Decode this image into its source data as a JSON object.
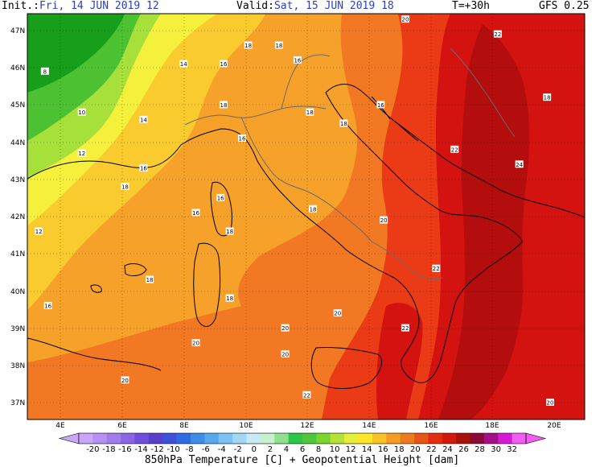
{
  "header": {
    "init_label": "Init.:",
    "init_value": "Fri, 14 JUN 2019  12",
    "valid_label": "Valid:",
    "valid_value": "Sat, 15 JUN 2019  18",
    "step": "T=+30h",
    "model": "GFS 0.25"
  },
  "axes": {
    "lat_labels": [
      "47N",
      "46N",
      "45N",
      "44N",
      "43N",
      "42N",
      "41N",
      "40N",
      "39N",
      "38N",
      "37N"
    ],
    "lon_labels": [
      "4E",
      "6E",
      "8E",
      "10E",
      "12E",
      "14E",
      "16E",
      "18E",
      "20E"
    ]
  },
  "contour_labels": [
    {
      "text": "20",
      "lon": 15.2,
      "lat": 47.3
    },
    {
      "text": "22",
      "lon": 18.2,
      "lat": 46.9
    },
    {
      "text": "8",
      "lon": 3.5,
      "lat": 45.9
    },
    {
      "text": "14",
      "lon": 8.0,
      "lat": 46.1
    },
    {
      "text": "16",
      "lon": 9.3,
      "lat": 46.1
    },
    {
      "text": "16",
      "lon": 11.7,
      "lat": 46.2
    },
    {
      "text": "18",
      "lon": 10.1,
      "lat": 46.6
    },
    {
      "text": "18",
      "lon": 11.1,
      "lat": 46.6
    },
    {
      "text": "18",
      "lon": 19.8,
      "lat": 45.2
    },
    {
      "text": "10",
      "lon": 4.7,
      "lat": 44.8
    },
    {
      "text": "18",
      "lon": 9.3,
      "lat": 45.0
    },
    {
      "text": "18",
      "lon": 12.1,
      "lat": 44.8
    },
    {
      "text": "18",
      "lon": 13.2,
      "lat": 44.5
    },
    {
      "text": "14",
      "lon": 6.7,
      "lat": 44.6
    },
    {
      "text": "16",
      "lon": 14.4,
      "lat": 45.0
    },
    {
      "text": "16",
      "lon": 9.9,
      "lat": 44.1
    },
    {
      "text": "12",
      "lon": 4.7,
      "lat": 43.7
    },
    {
      "text": "22",
      "lon": 16.8,
      "lat": 43.8
    },
    {
      "text": "24",
      "lon": 18.9,
      "lat": 43.4
    },
    {
      "text": "16",
      "lon": 6.7,
      "lat": 43.3
    },
    {
      "text": "18",
      "lon": 6.1,
      "lat": 42.8
    },
    {
      "text": "16",
      "lon": 9.2,
      "lat": 42.5
    },
    {
      "text": "16",
      "lon": 8.4,
      "lat": 42.1
    },
    {
      "text": "18",
      "lon": 12.2,
      "lat": 42.2
    },
    {
      "text": "20",
      "lon": 14.5,
      "lat": 41.9
    },
    {
      "text": "12",
      "lon": 3.3,
      "lat": 41.6
    },
    {
      "text": "18",
      "lon": 9.5,
      "lat": 41.6
    },
    {
      "text": "22",
      "lon": 16.2,
      "lat": 40.6
    },
    {
      "text": "18",
      "lon": 6.9,
      "lat": 40.3
    },
    {
      "text": "16",
      "lon": 3.6,
      "lat": 39.6
    },
    {
      "text": "18",
      "lon": 9.5,
      "lat": 39.8
    },
    {
      "text": "20",
      "lon": 13.0,
      "lat": 39.4
    },
    {
      "text": "20",
      "lon": 11.3,
      "lat": 39.0
    },
    {
      "text": "22",
      "lon": 15.2,
      "lat": 39.0
    },
    {
      "text": "20",
      "lon": 8.4,
      "lat": 38.6
    },
    {
      "text": "20",
      "lon": 11.3,
      "lat": 38.3
    },
    {
      "text": "20",
      "lon": 6.1,
      "lat": 37.6
    },
    {
      "text": "22",
      "lon": 12.0,
      "lat": 37.2
    },
    {
      "text": "20",
      "lon": 19.9,
      "lat": 37.0
    }
  ],
  "colorbar": {
    "ticks": [
      "-20",
      "-18",
      "-16",
      "-14",
      "-12",
      "-10",
      "-8",
      "-6",
      "-4",
      "-2",
      "0",
      "2",
      "4",
      "6",
      "8",
      "10",
      "12",
      "14",
      "16",
      "18",
      "20",
      "22",
      "24",
      "26",
      "28",
      "30",
      "32"
    ],
    "colors": [
      "#c9a6f7",
      "#b592f2",
      "#a07ced",
      "#8a66e6",
      "#6f4fd9",
      "#5a3fcc",
      "#3d52d6",
      "#2f6ce0",
      "#3d8ce8",
      "#58a8ee",
      "#7cc2f2",
      "#a2d8f5",
      "#c6ebf7",
      "#c8f0cd",
      "#8fe08f",
      "#2ec646",
      "#4ec83a",
      "#7ad62e",
      "#b4e235",
      "#e6ee3a",
      "#fbe62a",
      "#f9c227",
      "#f49b23",
      "#ee7a1e",
      "#e85518",
      "#e32e0f",
      "#d11a0a",
      "#a8100a",
      "#8a0a34",
      "#a4108a",
      "#d41ad4",
      "#f25cf2"
    ],
    "title": "850hPa Temperature [C] + Geopotential Height [dam]"
  },
  "field_colors": {
    "c8": "#179e1a",
    "c10": "#4cc233",
    "c12": "#a7e03a",
    "c14": "#f4f03c",
    "c16": "#f9cb2f",
    "c18": "#f6a12a",
    "c20": "#f27823",
    "c22": "#ea3b16",
    "c24": "#d41210",
    "c26": "#b30d0d"
  }
}
